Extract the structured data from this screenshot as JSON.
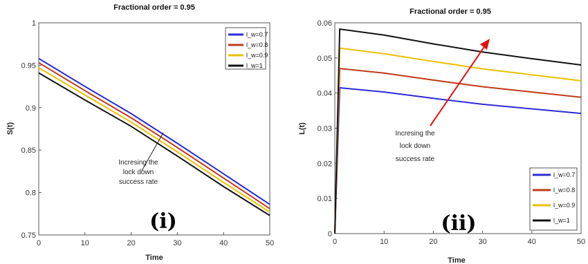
{
  "chart_data": [
    {
      "type": "line",
      "title": "Fractional order = 0.95",
      "xlabel": "Time",
      "ylabel": "S(t)",
      "xlim": [
        0,
        50
      ],
      "ylim": [
        0.75,
        1
      ],
      "xticks": [
        "0",
        "10",
        "20",
        "30",
        "40",
        "50"
      ],
      "yticks": [
        "0.75",
        "0.8",
        "0.85",
        "0.9",
        "0.95",
        "1"
      ],
      "x": [
        0,
        10,
        20,
        30,
        40,
        50
      ],
      "series": [
        {
          "name": "l_w=0.7",
          "color": "#2b2bd6",
          "values": [
            0.958,
            0.925,
            0.893,
            0.858,
            0.822,
            0.786
          ]
        },
        {
          "name": "l_w=0.8",
          "color": "#c0391b",
          "values": [
            0.953,
            0.92,
            0.888,
            0.853,
            0.817,
            0.781
          ]
        },
        {
          "name": "l_w=0.9",
          "color": "#e8c000",
          "values": [
            0.947,
            0.915,
            0.883,
            0.848,
            0.812,
            0.777
          ]
        },
        {
          "name": "l_w=1",
          "color": "#111111",
          "values": [
            0.941,
            0.909,
            0.878,
            0.843,
            0.807,
            0.773
          ]
        }
      ],
      "annotation": [
        "Incresing the",
        "lock down",
        "success rate"
      ],
      "panel_label": "(i)",
      "legend": "top-right",
      "grid": false
    },
    {
      "type": "line",
      "title": "Fractional order = 0.95",
      "xlabel": "Time",
      "ylabel": "L(t)",
      "xlim": [
        0,
        50
      ],
      "ylim": [
        0,
        0.06
      ],
      "xticks": [
        "0",
        "10",
        "20",
        "30",
        "40",
        "50"
      ],
      "yticks": [
        "0",
        "0.01",
        "0.02",
        "0.03",
        "0.04",
        "0.05",
        "0.06"
      ],
      "x": [
        0,
        1,
        10,
        20,
        30,
        40,
        50
      ],
      "series": [
        {
          "name": "l_w=0.7",
          "color": "#2b2bd6",
          "values": [
            0.0,
            0.0415,
            0.0403,
            0.0385,
            0.0368,
            0.0355,
            0.0342
          ]
        },
        {
          "name": "l_w=0.8",
          "color": "#c0391b",
          "values": [
            0.0,
            0.047,
            0.0457,
            0.0437,
            0.0418,
            0.0403,
            0.0388
          ]
        },
        {
          "name": "l_w=0.9",
          "color": "#e8c000",
          "values": [
            0.0,
            0.0528,
            0.0512,
            0.049,
            0.0469,
            0.0452,
            0.0435
          ]
        },
        {
          "name": "l_w=1",
          "color": "#111111",
          "values": [
            0.0,
            0.0582,
            0.0565,
            0.054,
            0.0517,
            0.0498,
            0.048
          ]
        }
      ],
      "annotation": [
        "Incresing the",
        "lock down",
        "success rate"
      ],
      "panel_label": "(ii)",
      "legend": "bottom-right",
      "grid": false
    }
  ]
}
